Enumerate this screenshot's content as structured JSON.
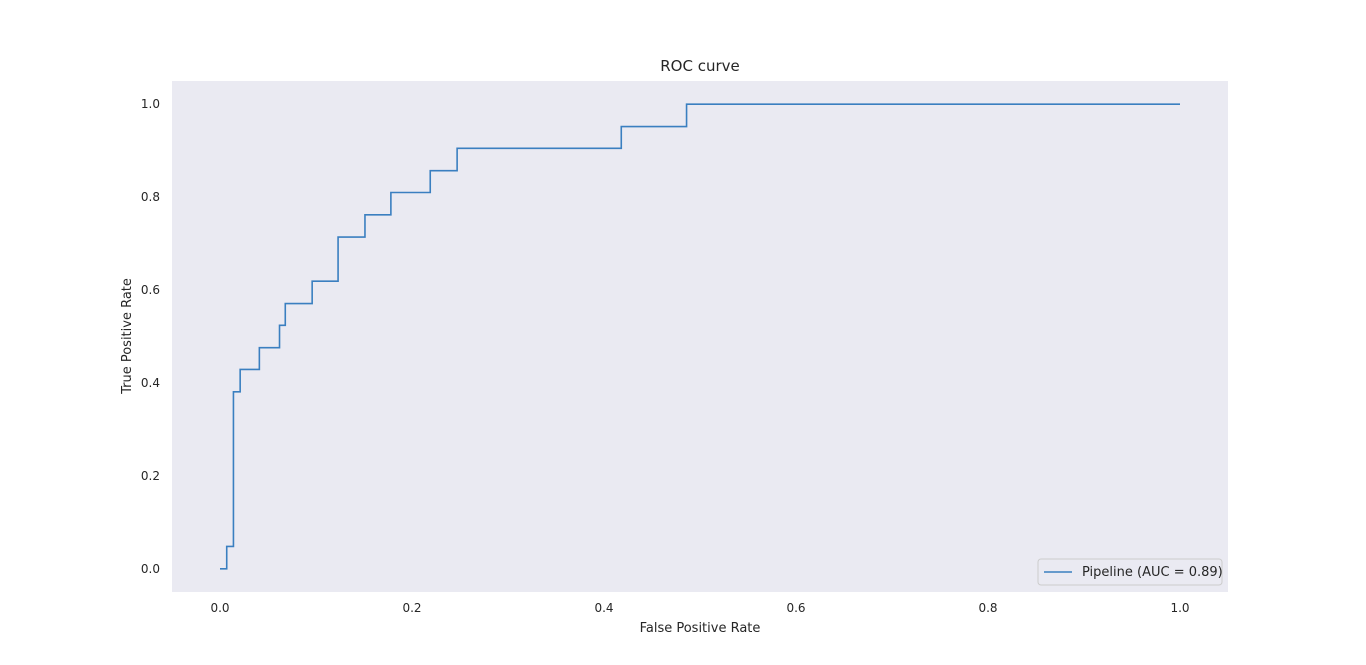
{
  "colors": {
    "plot_background": "#eaeaf2",
    "series_line": "#3a7fc0",
    "text": "#262626"
  },
  "chart_data": {
    "type": "line",
    "title": "ROC curve",
    "xlabel": "False Positive Rate",
    "ylabel": "True Positive Rate",
    "xlim": [
      -0.05,
      1.05
    ],
    "ylim": [
      -0.05,
      1.05
    ],
    "grid": false,
    "legend_position": "lower-right",
    "x_ticks": [
      {
        "value": 0.0,
        "label": "0.0"
      },
      {
        "value": 0.2,
        "label": "0.2"
      },
      {
        "value": 0.4,
        "label": "0.4"
      },
      {
        "value": 0.6,
        "label": "0.6"
      },
      {
        "value": 0.8,
        "label": "0.8"
      },
      {
        "value": 1.0,
        "label": "1.0"
      }
    ],
    "y_ticks": [
      {
        "value": 0.0,
        "label": "0.0"
      },
      {
        "value": 0.2,
        "label": "0.2"
      },
      {
        "value": 0.4,
        "label": "0.4"
      },
      {
        "value": 0.6,
        "label": "0.6"
      },
      {
        "value": 0.8,
        "label": "0.8"
      },
      {
        "value": 1.0,
        "label": "1.0"
      }
    ],
    "series": [
      {
        "name": "Pipeline (AUC = 0.89)",
        "step": true,
        "x": [
          0.0,
          0.007,
          0.007,
          0.014,
          0.014,
          0.021,
          0.021,
          0.041,
          0.041,
          0.062,
          0.062,
          0.068,
          0.068,
          0.096,
          0.096,
          0.123,
          0.123,
          0.151,
          0.151,
          0.178,
          0.178,
          0.219,
          0.219,
          0.247,
          0.247,
          0.418,
          0.418,
          0.486,
          0.486,
          1.0
        ],
        "y": [
          0.0,
          0.0,
          0.048,
          0.048,
          0.381,
          0.381,
          0.429,
          0.429,
          0.476,
          0.476,
          0.524,
          0.524,
          0.571,
          0.571,
          0.619,
          0.619,
          0.714,
          0.714,
          0.762,
          0.762,
          0.81,
          0.81,
          0.857,
          0.857,
          0.905,
          0.905,
          0.952,
          0.952,
          1.0,
          1.0
        ]
      }
    ]
  }
}
